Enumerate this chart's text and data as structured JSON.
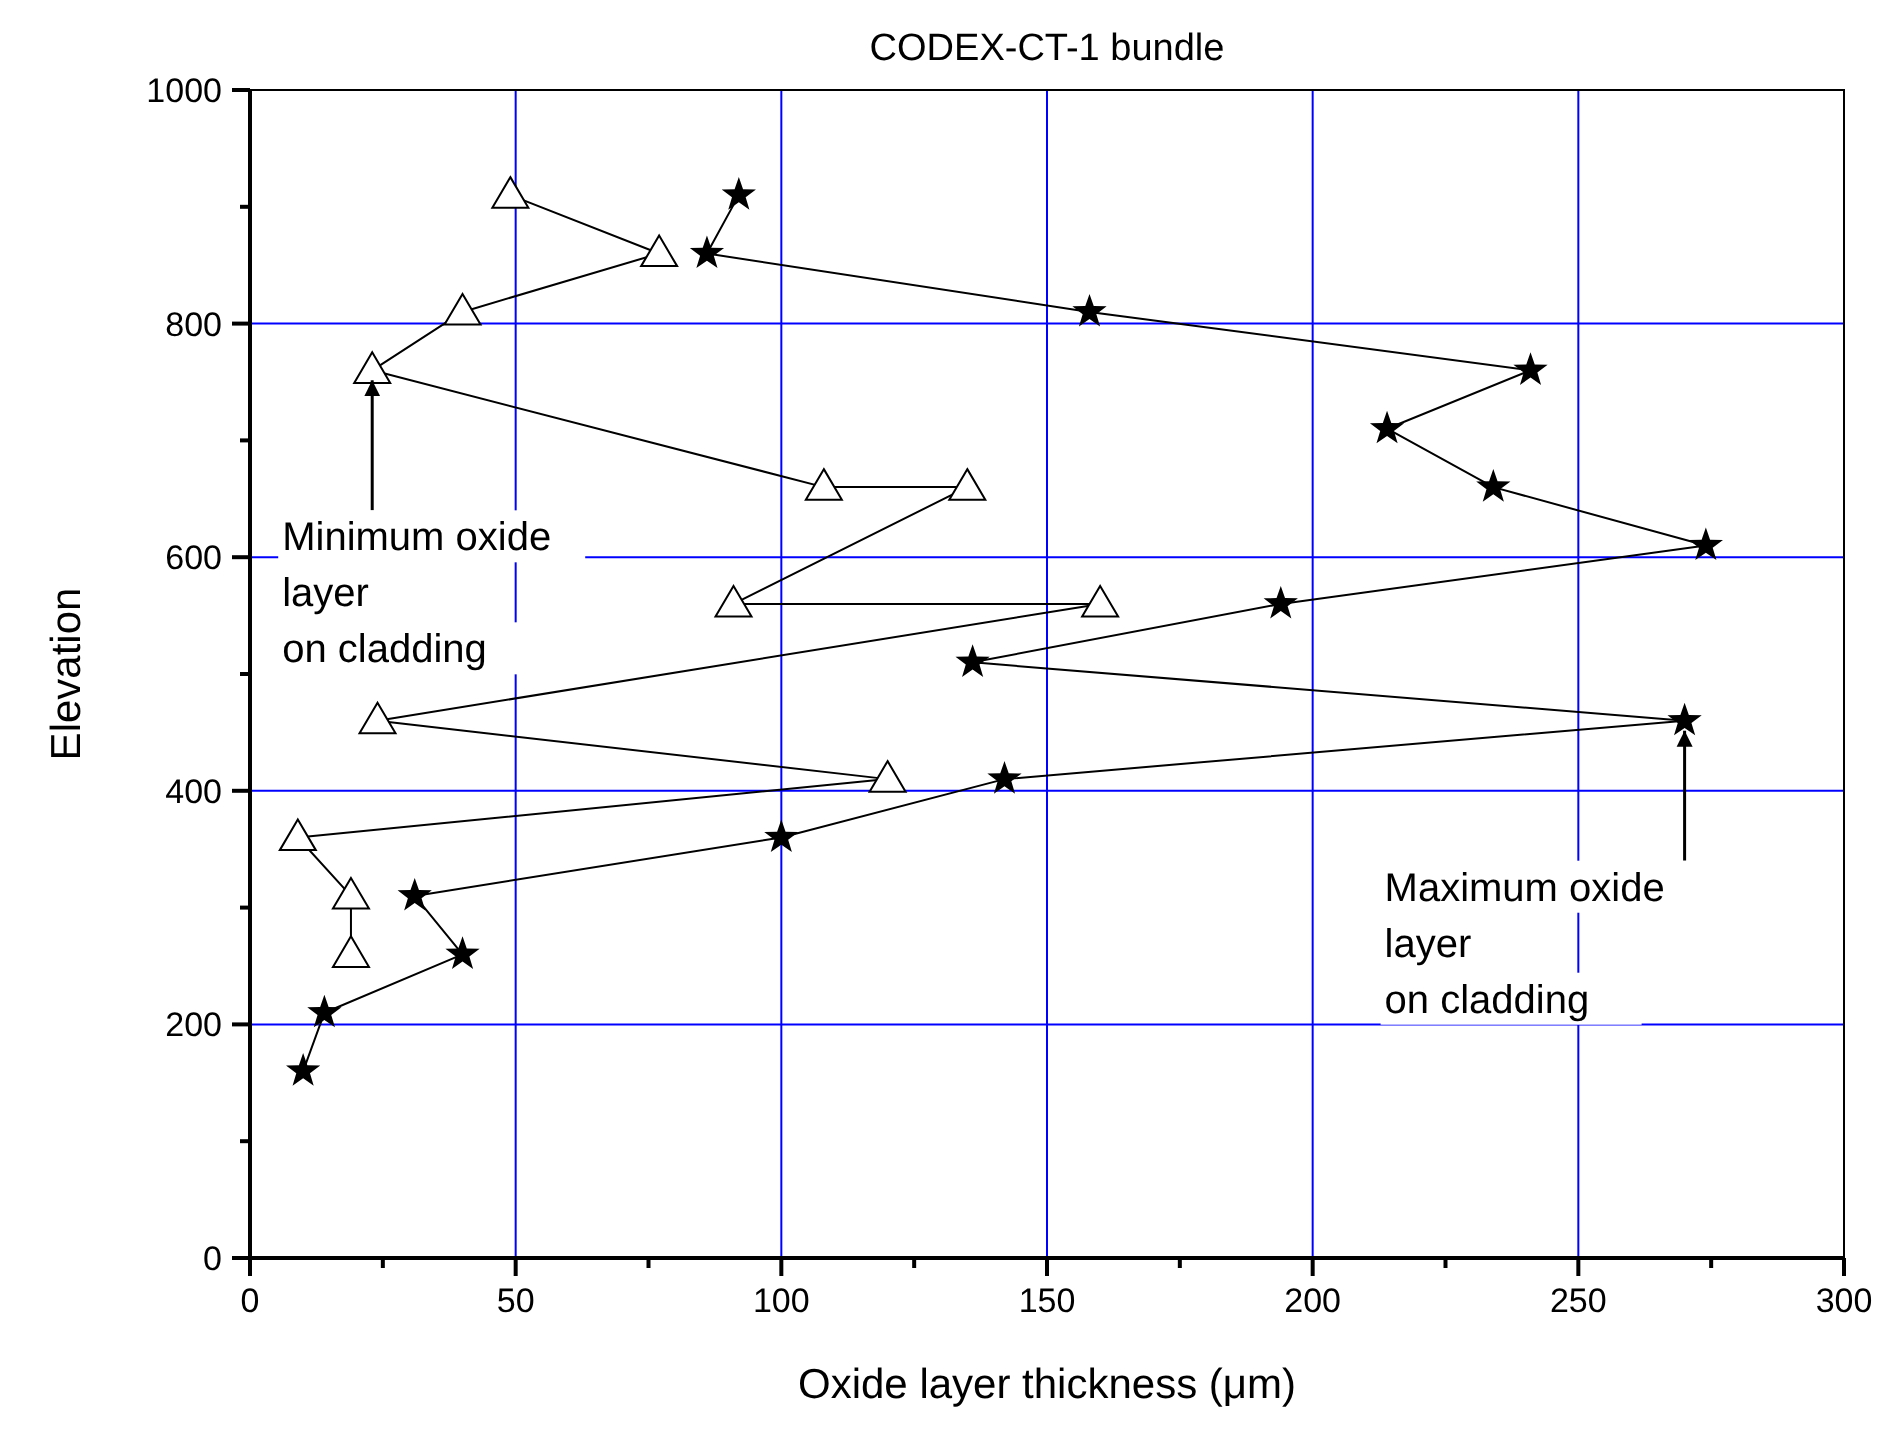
{
  "chart_data": {
    "type": "line",
    "title": "CODEX-CT-1 bundle",
    "xlabel": "Oxide layer thickness (μm)",
    "ylabel": "Elevation",
    "xlim": [
      0,
      300
    ],
    "ylim": [
      0,
      1000
    ],
    "xticks": [
      0,
      {
        "value": 25,
        "label": null
      },
      50,
      {
        "value": 75,
        "label": null
      },
      100,
      {
        "value": 125,
        "label": null
      },
      150,
      {
        "value": 175,
        "label": null
      },
      200,
      {
        "value": 225,
        "label": null
      },
      250,
      {
        "value": 275,
        "label": null
      },
      300
    ],
    "yticks": [
      0,
      {
        "value": 100,
        "label": null
      },
      200,
      {
        "value": 300,
        "label": null
      },
      400,
      {
        "value": 500,
        "label": null
      },
      600,
      {
        "value": 700,
        "label": null
      },
      800,
      {
        "value": 900,
        "label": null
      },
      1000
    ],
    "grid": true,
    "series": [
      {
        "color": "#000000",
        "marker": "triangle",
        "x": [
          49,
          77,
          40,
          23,
          108,
          135,
          91,
          160,
          24,
          120,
          9,
          19,
          19
        ],
        "values": [
          910,
          860,
          810,
          760,
          660,
          660,
          560,
          560,
          460,
          410,
          360,
          310,
          260
        ]
      },
      {
        "color": "#000000",
        "marker": "star",
        "x": [
          92,
          86,
          158,
          241,
          214,
          234,
          274,
          194,
          136,
          270,
          142,
          100,
          31,
          40,
          14,
          10
        ],
        "values": [
          910,
          860,
          810,
          760,
          710,
          660,
          610,
          560,
          510,
          460,
          410,
          360,
          310,
          260,
          210,
          160
        ]
      }
    ],
    "annotations": [
      {
        "text": "Minimum oxide\nlayer\non cladding",
        "x": 23,
        "y": 760
      },
      {
        "text": "Maximum oxide\nlayer\non cladding",
        "x": 270,
        "y": 460
      }
    ]
  }
}
